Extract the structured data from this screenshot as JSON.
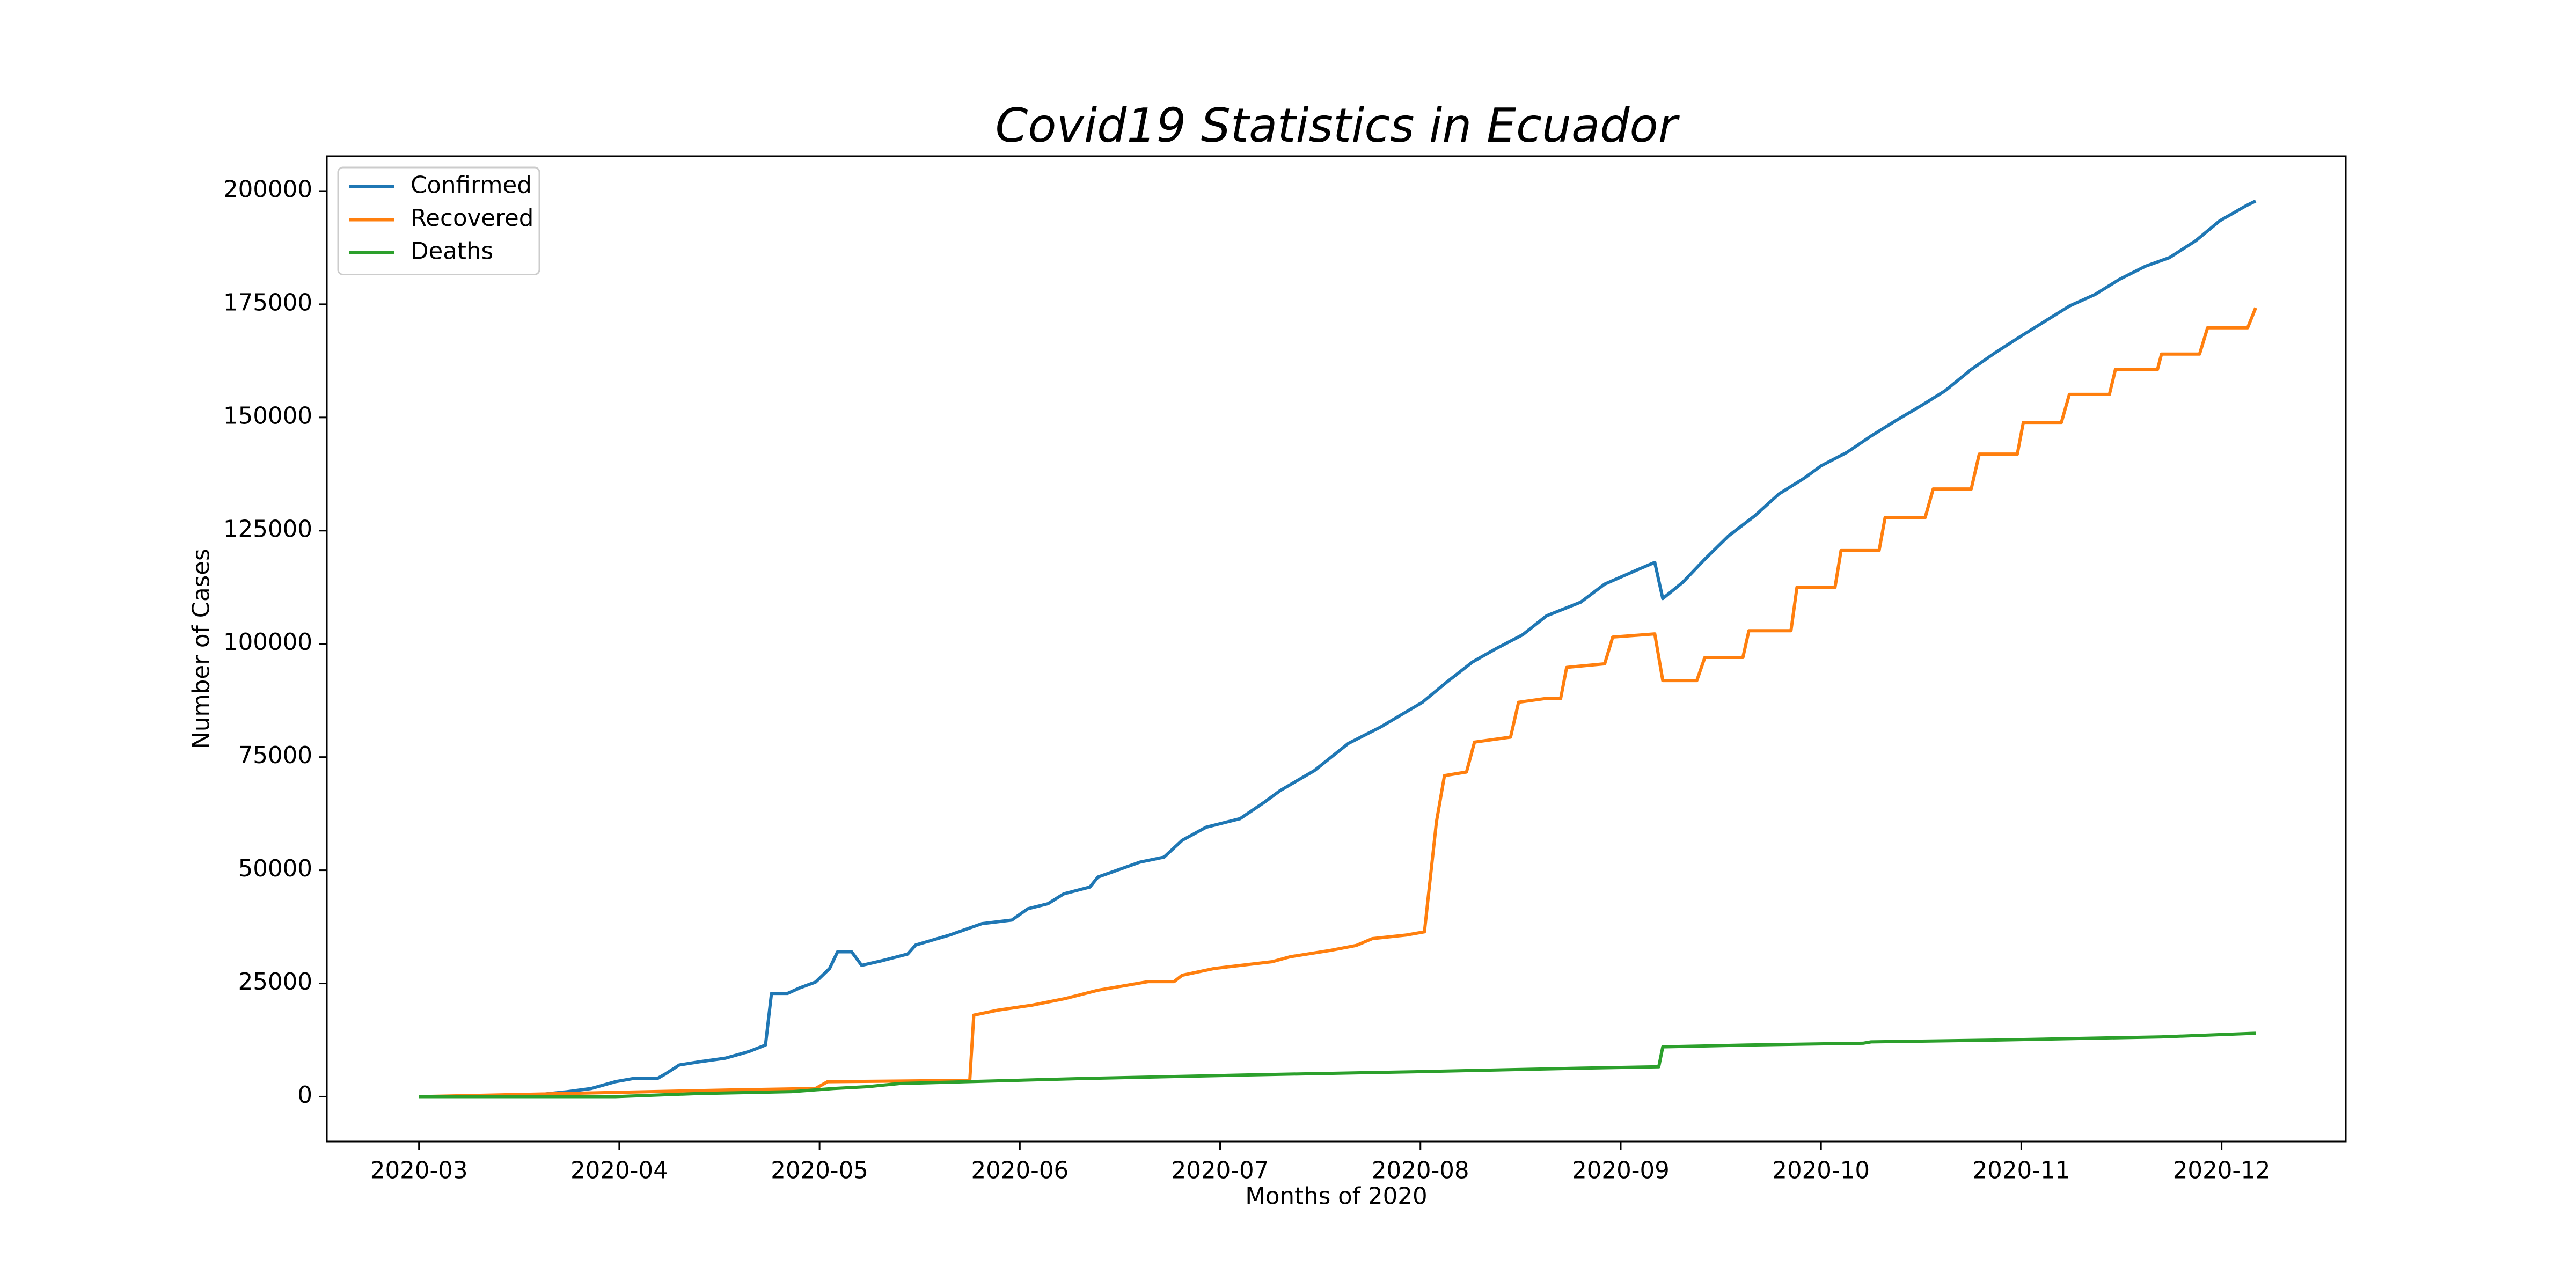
{
  "chart_data": {
    "type": "line",
    "title": "Covid19 Statistics in Ecuador",
    "x_label": "Months of 2020",
    "y_label": "Number of Cases",
    "xlim": [
      2.54,
      12.62
    ],
    "ylim": [
      -9900,
      207700
    ],
    "xticks": [
      {
        "value": 3,
        "label": "2020-03"
      },
      {
        "value": 4,
        "label": "2020-04"
      },
      {
        "value": 5,
        "label": "2020-05"
      },
      {
        "value": 6,
        "label": "2020-06"
      },
      {
        "value": 7,
        "label": "2020-07"
      },
      {
        "value": 8,
        "label": "2020-08"
      },
      {
        "value": 9,
        "label": "2020-09"
      },
      {
        "value": 10,
        "label": "2020-10"
      },
      {
        "value": 11,
        "label": "2020-11"
      },
      {
        "value": 12,
        "label": "2020-12"
      }
    ],
    "yticks": [
      0,
      25000,
      50000,
      75000,
      100000,
      125000,
      150000,
      175000,
      200000
    ],
    "legend": "upper left",
    "grid": false,
    "series": [
      {
        "name": "Confirmed",
        "color": "#1f77b4",
        "x": [
          3.0,
          3.41,
          3.57,
          3.74,
          3.86,
          3.98,
          4.07,
          4.19,
          4.23,
          4.3,
          4.4,
          4.53,
          4.65,
          4.73,
          4.76,
          4.84,
          4.9,
          4.98,
          5.05,
          5.09,
          5.16,
          5.21,
          5.31,
          5.44,
          5.48,
          5.65,
          5.81,
          5.96,
          6.04,
          6.14,
          6.22,
          6.35,
          6.39,
          6.6,
          6.72,
          6.81,
          6.93,
          7.1,
          7.22,
          7.3,
          7.47,
          7.64,
          7.8,
          8.01,
          8.13,
          8.26,
          8.38,
          8.51,
          8.63,
          8.8,
          8.92,
          9.07,
          9.17,
          9.21,
          9.31,
          9.42,
          9.54,
          9.67,
          9.79,
          9.92,
          10.0,
          10.13,
          10.25,
          10.37,
          10.5,
          10.62,
          10.75,
          10.87,
          11.0,
          11.12,
          11.24,
          11.37,
          11.49,
          11.62,
          11.74,
          11.87,
          11.99,
          12.12,
          12.17
        ],
        "values": [
          0,
          0,
          300,
          1100,
          1800,
          3300,
          4000,
          4000,
          5000,
          7000,
          7700,
          8500,
          10000,
          11400,
          22800,
          22800,
          24000,
          25300,
          28300,
          32000,
          32000,
          29000,
          30000,
          31500,
          33500,
          35700,
          38200,
          39000,
          41500,
          42600,
          44800,
          46300,
          48500,
          51800,
          52900,
          56600,
          59500,
          61400,
          65000,
          67600,
          72000,
          78000,
          81600,
          87100,
          91500,
          96000,
          99000,
          102000,
          106200,
          109200,
          113200,
          116100,
          118000,
          110000,
          113600,
          118700,
          123900,
          128300,
          133100,
          136700,
          139300,
          142300,
          145900,
          149200,
          152600,
          155900,
          160600,
          164300,
          168000,
          171300,
          174600,
          177200,
          180500,
          183400,
          185300,
          189000,
          193400,
          196700,
          197800
        ]
      },
      {
        "name": "Recovered",
        "color": "#ff7f0e",
        "x": [
          3.0,
          4.57,
          4.98,
          5.04,
          5.75,
          5.77,
          5.89,
          6.06,
          6.23,
          6.39,
          6.64,
          6.77,
          6.81,
          6.97,
          7.26,
          7.35,
          7.55,
          7.68,
          7.76,
          7.93,
          8.02,
          8.08,
          8.12,
          8.23,
          8.27,
          8.45,
          8.49,
          8.62,
          8.7,
          8.73,
          8.92,
          8.96,
          9.17,
          9.21,
          9.38,
          9.42,
          9.61,
          9.64,
          9.85,
          9.88,
          10.07,
          10.1,
          10.29,
          10.32,
          10.52,
          10.56,
          10.75,
          10.79,
          10.98,
          11.01,
          11.2,
          11.24,
          11.44,
          11.47,
          11.68,
          11.7,
          11.89,
          11.93,
          12.13,
          12.17
        ],
        "values": [
          0,
          1500,
          1800,
          3300,
          3600,
          18000,
          19100,
          20200,
          21700,
          23500,
          25400,
          25400,
          26800,
          28300,
          29800,
          30900,
          32300,
          33400,
          34900,
          35700,
          36400,
          60700,
          70900,
          71700,
          78300,
          79400,
          87100,
          87900,
          87900,
          94800,
          95600,
          101500,
          102200,
          91900,
          91900,
          97000,
          97000,
          102900,
          102900,
          112500,
          112500,
          120600,
          120600,
          127900,
          127900,
          134200,
          134200,
          141900,
          141900,
          148900,
          148900,
          155100,
          155100,
          160600,
          160600,
          164000,
          164000,
          169800,
          169800,
          174200
        ]
      },
      {
        "name": "Deaths",
        "color": "#2ca02c",
        "x": [
          3.0,
          3.98,
          4.4,
          4.86,
          4.98,
          5.07,
          5.24,
          5.4,
          5.73,
          6.31,
          7.14,
          7.97,
          8.8,
          9.19,
          9.21,
          9.63,
          10.21,
          10.25,
          10.87,
          11.7,
          12.17
        ],
        "values": [
          0,
          0,
          700,
          1100,
          1500,
          1800,
          2200,
          2900,
          3300,
          4000,
          4800,
          5500,
          6300,
          6600,
          11000,
          11400,
          11800,
          12100,
          12500,
          13200,
          14000
        ]
      }
    ]
  }
}
